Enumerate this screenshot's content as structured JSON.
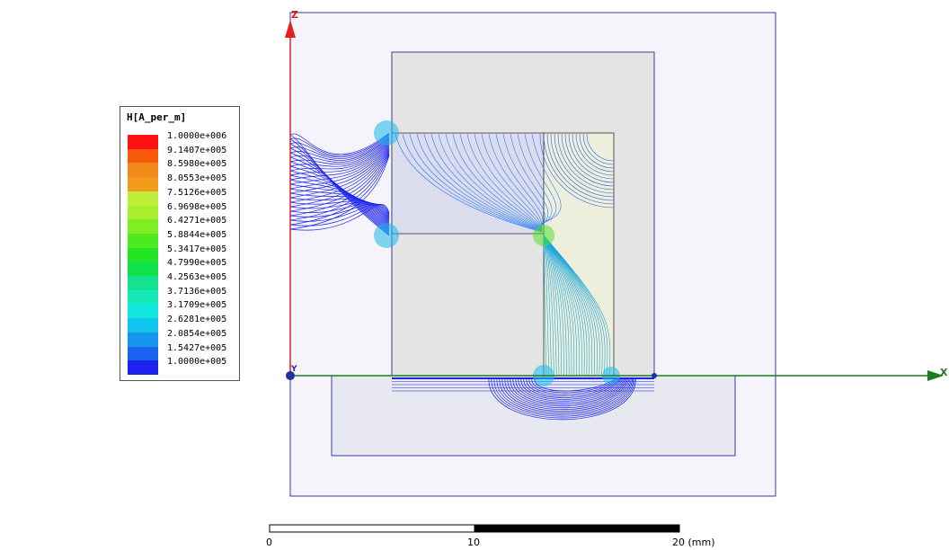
{
  "legend": {
    "title": "H[A_per_m]",
    "entries": [
      {
        "label": "1.0000e+006",
        "color": "#ff1212"
      },
      {
        "label": "9.1407e+005",
        "color": "#f95a0c"
      },
      {
        "label": "8.5980e+005",
        "color": "#f0881a"
      },
      {
        "label": "8.0553e+005",
        "color": "#f39a1c"
      },
      {
        "label": "7.5126e+005",
        "color": "#bcee3a"
      },
      {
        "label": "6.9698e+005",
        "color": "#a8f02e"
      },
      {
        "label": "6.4271e+005",
        "color": "#7fee22"
      },
      {
        "label": "5.8844e+005",
        "color": "#4cea1e"
      },
      {
        "label": "5.3417e+005",
        "color": "#22e622"
      },
      {
        "label": "4.7990e+005",
        "color": "#10e04a"
      },
      {
        "label": "4.2563e+005",
        "color": "#14e28e"
      },
      {
        "label": "3.7136e+005",
        "color": "#16e8b6"
      },
      {
        "label": "3.1709e+005",
        "color": "#12e6e0"
      },
      {
        "label": "2.6281e+005",
        "color": "#10c6ee"
      },
      {
        "label": "2.0854e+005",
        "color": "#1496ee"
      },
      {
        "label": "1.5427e+005",
        "color": "#1a62f0"
      },
      {
        "label": "1.0000e+005",
        "color": "#1b22ee"
      }
    ]
  },
  "axes": {
    "z_label": "Z",
    "x_label": "X",
    "y_label": "Y",
    "z_color": "#e02020",
    "x_color": "#1e7a1e"
  },
  "scale_bar": {
    "labels": [
      "0",
      "10",
      "20 (mm)"
    ]
  },
  "colors": {
    "region_border": "#3a3aa0",
    "region_fill": "#ececf6",
    "core_fill": "#e4e4e4",
    "flux_line": "#1b22ee"
  }
}
